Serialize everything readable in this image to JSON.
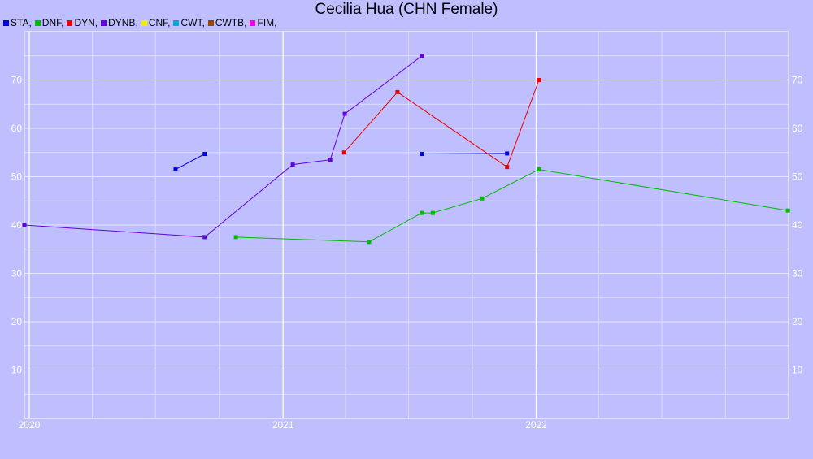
{
  "chart_data": {
    "type": "line",
    "title": "Cecilia Hua (CHN Female)",
    "legend_position": "top-left",
    "grid": true,
    "xlabel": "",
    "ylabel": "",
    "x_ticks": [
      "2020",
      "2021",
      "2022"
    ],
    "x_range": [
      "2019-12-25",
      "2022-12-31"
    ],
    "ylim": [
      0,
      80
    ],
    "y_ticks": [
      10,
      20,
      30,
      40,
      50,
      60,
      70
    ],
    "legend": [
      {
        "label": "STA,",
        "color": "#0000dd"
      },
      {
        "label": "DNF,",
        "color": "#00bb00"
      },
      {
        "label": "DYN,",
        "color": "#ee0000"
      },
      {
        "label": "DYNB,",
        "color": "#6600dd"
      },
      {
        "label": "CNF,",
        "color": "#eeee00"
      },
      {
        "label": "CWT,",
        "color": "#00aadd"
      },
      {
        "label": "CWTB,",
        "color": "#994400"
      },
      {
        "label": "FIM,",
        "color": "#ee00ee"
      }
    ],
    "series": [
      {
        "name": "STA",
        "color": "#0000dd",
        "points": [
          [
            "2020-07-30",
            51.5
          ],
          [
            "2020-09-10",
            54.7
          ],
          [
            "2021-07-20",
            54.7
          ],
          [
            "2021-11-20",
            54.8
          ]
        ]
      },
      {
        "name": "DNF",
        "color": "#00bb00",
        "points": [
          [
            "2020-10-25",
            37.5
          ],
          [
            "2021-05-05",
            36.5
          ],
          [
            "2021-07-20",
            42.5
          ],
          [
            "2021-08-05",
            42.5
          ],
          [
            "2021-10-15",
            45.5
          ],
          [
            "2022-01-05",
            51.5
          ],
          [
            "2022-12-30",
            43.0
          ]
        ]
      },
      {
        "name": "DYN",
        "color": "#ee0000",
        "points": [
          [
            "2021-03-30",
            55.0
          ],
          [
            "2021-06-15",
            67.5
          ],
          [
            "2021-11-20",
            52.0
          ],
          [
            "2022-01-05",
            70.0
          ]
        ]
      },
      {
        "name": "DYNB",
        "color": "#6600dd",
        "points": [
          [
            "2019-12-25",
            40.0
          ],
          [
            "2020-09-10",
            37.5
          ],
          [
            "2021-01-15",
            52.5
          ],
          [
            "2021-03-10",
            53.5
          ],
          [
            "2021-03-31",
            63.0
          ],
          [
            "2021-07-20",
            75.0
          ]
        ]
      }
    ]
  }
}
